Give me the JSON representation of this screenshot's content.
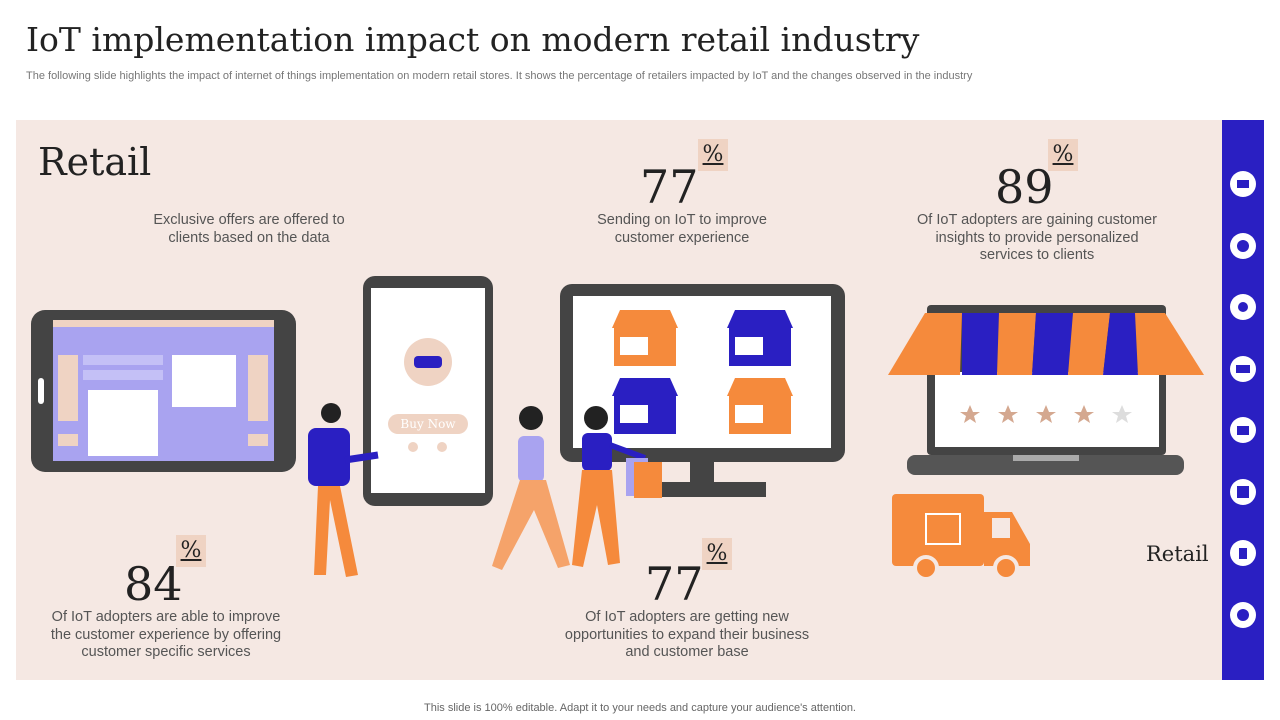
{
  "header": {
    "title": "IoT implementation impact on modern retail industry",
    "subtitle": "The following slide highlights the impact of internet of things implementation on modern retail stores. It shows the percentage of retailers impacted by IoT and the changes observed in the industry"
  },
  "panel": {
    "heading": "Retail",
    "intro": "Exclusive offers are offered to clients based on the data",
    "button": "Buy Now",
    "side_label": "Retail",
    "stats": [
      {
        "value": "77",
        "unit": "%",
        "text": "Sending on IoT to improve customer experience"
      },
      {
        "value": "89",
        "unit": "%",
        "text": "Of IoT adopters are gaining customer insights to provide personalized services to clients"
      },
      {
        "value": "84",
        "unit": "%",
        "text": "Of IoT adopters are able to improve the customer experience by offering customer specific services"
      },
      {
        "value": "77",
        "unit": "%",
        "text": "Of IoT adopters are getting new opportunities to expand their business and customer base"
      }
    ]
  },
  "footer": "This slide is 100% editable. Adapt it to your needs and capture your audience's attention."
}
